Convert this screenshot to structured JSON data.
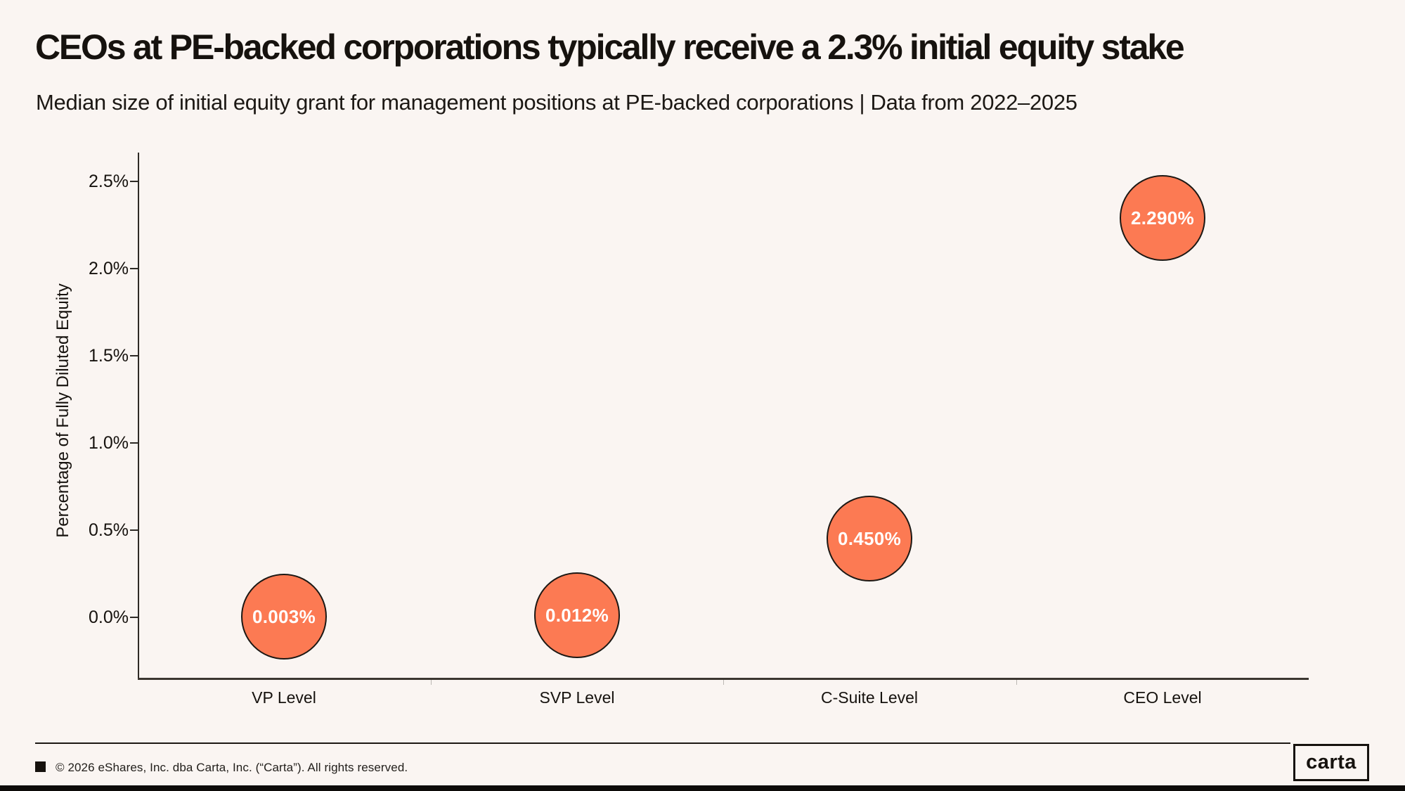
{
  "page": {
    "background_color": "#FAF5F2",
    "text_color": "#16120E",
    "accent_color": "#FC7A53",
    "bottom_bar_color": "#0D0B09"
  },
  "header": {
    "title": "CEOs at PE-backed corporations typically receive a 2.3% initial equity stake",
    "subtitle": "Median size of initial equity grant for management positions at PE-backed corporations | Data from 2022–2025"
  },
  "chart_data": {
    "type": "scatter",
    "categories": [
      "VP Level",
      "SVP Level",
      "C-Suite Level",
      "CEO Level"
    ],
    "values": [
      0.003,
      0.012,
      0.45,
      2.29
    ],
    "point_labels": [
      "0.003%",
      "0.012%",
      "0.450%",
      "2.290%"
    ],
    "units": "percent of fully diluted equity",
    "title": "",
    "xlabel": "",
    "ylabel": "Percentage of Fully Diluted Equity",
    "yticks": {
      "values": [
        0.0,
        0.5,
        1.0,
        1.5,
        2.0,
        2.5
      ],
      "labels": [
        "0.0%",
        "0.5%",
        "1.0%",
        "1.5%",
        "2.0%",
        "2.5%"
      ]
    },
    "ylim": [
      -0.37,
      2.66
    ],
    "grid": false,
    "legend": false,
    "marker_fill_color": "#FC7A53",
    "marker_border_color": "#1C1814",
    "marker_label_color": "#FFFFFF"
  },
  "footer": {
    "copyright": "© 2026 eShares, Inc. dba Carta, Inc. (“Carta”). All rights reserved.",
    "logo_text": "carta"
  }
}
